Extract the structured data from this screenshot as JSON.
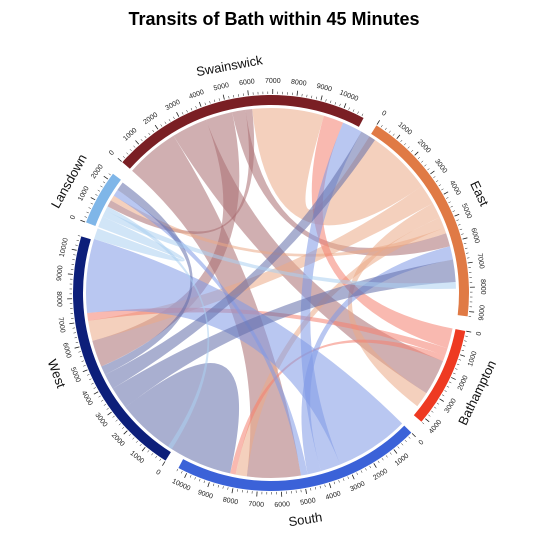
{
  "chart_data": {
    "type": "chord",
    "title": "Transits of Bath within 45 Minutes",
    "sectors": [
      {
        "name": "Swainswick",
        "total": 10900,
        "color": "#7a1f24",
        "ticks": [
          0,
          1000,
          2000,
          3000,
          4000,
          5000,
          6000,
          7000,
          8000,
          9000,
          10000
        ]
      },
      {
        "name": "East",
        "total": 9200,
        "color": "#e07a45",
        "ticks": [
          0,
          1000,
          2000,
          3000,
          4000,
          5000,
          6000,
          7000,
          8000,
          9000
        ]
      },
      {
        "name": "Bathampton",
        "total": 4200,
        "color": "#ee3a22",
        "ticks": [
          0,
          1000,
          2000,
          3000,
          4000
        ]
      },
      {
        "name": "South",
        "total": 10400,
        "color": "#3b62d8",
        "ticks": [
          0,
          1000,
          2000,
          3000,
          4000,
          5000,
          6000,
          7000,
          8000,
          9000,
          10000
        ]
      },
      {
        "name": "West",
        "total": 10600,
        "color": "#0d1f7a",
        "ticks": [
          0,
          1000,
          2000,
          3000,
          4000,
          5000,
          6000,
          7000,
          8000,
          9000,
          10000
        ]
      },
      {
        "name": "Lansdown",
        "total": 2300,
        "color": "#7fb6e8",
        "ticks": [
          0,
          1000,
          2000
        ]
      }
    ],
    "flows": [
      {
        "from": "Swainswick",
        "to": "South",
        "value": 2400
      },
      {
        "from": "Swainswick",
        "to": "Bathampton",
        "value": 1600
      },
      {
        "from": "Swainswick",
        "to": "West",
        "value": 1200
      },
      {
        "from": "Swainswick",
        "to": "East",
        "value": 600
      },
      {
        "from": "Swainswick",
        "to": "Lansdown",
        "value": 300
      },
      {
        "from": "East",
        "to": "Swainswick",
        "value": 3200
      },
      {
        "from": "East",
        "to": "West",
        "value": 900
      },
      {
        "from": "East",
        "to": "Bathampton",
        "value": 700
      },
      {
        "from": "East",
        "to": "South",
        "value": 500
      },
      {
        "from": "East",
        "to": "Lansdown",
        "value": 250
      },
      {
        "from": "Bathampton",
        "to": "Swainswick",
        "value": 900
      },
      {
        "from": "Bathampton",
        "to": "West",
        "value": 350
      },
      {
        "from": "Bathampton",
        "to": "South",
        "value": 250
      },
      {
        "from": "South",
        "to": "West",
        "value": 3300
      },
      {
        "from": "South",
        "to": "Swainswick",
        "value": 900
      },
      {
        "from": "South",
        "to": "East",
        "value": 600
      },
      {
        "from": "South",
        "to": "Lansdown",
        "value": 300
      },
      {
        "from": "West",
        "to": "South",
        "value": 2800
      },
      {
        "from": "West",
        "to": "East",
        "value": 1000
      },
      {
        "from": "West",
        "to": "Swainswick",
        "value": 700
      },
      {
        "from": "West",
        "to": "Lansdown",
        "value": 400
      },
      {
        "from": "Lansdown",
        "to": "West",
        "value": 500
      },
      {
        "from": "Lansdown",
        "to": "East",
        "value": 300
      },
      {
        "from": "Lansdown",
        "to": "South",
        "value": 200
      }
    ]
  }
}
